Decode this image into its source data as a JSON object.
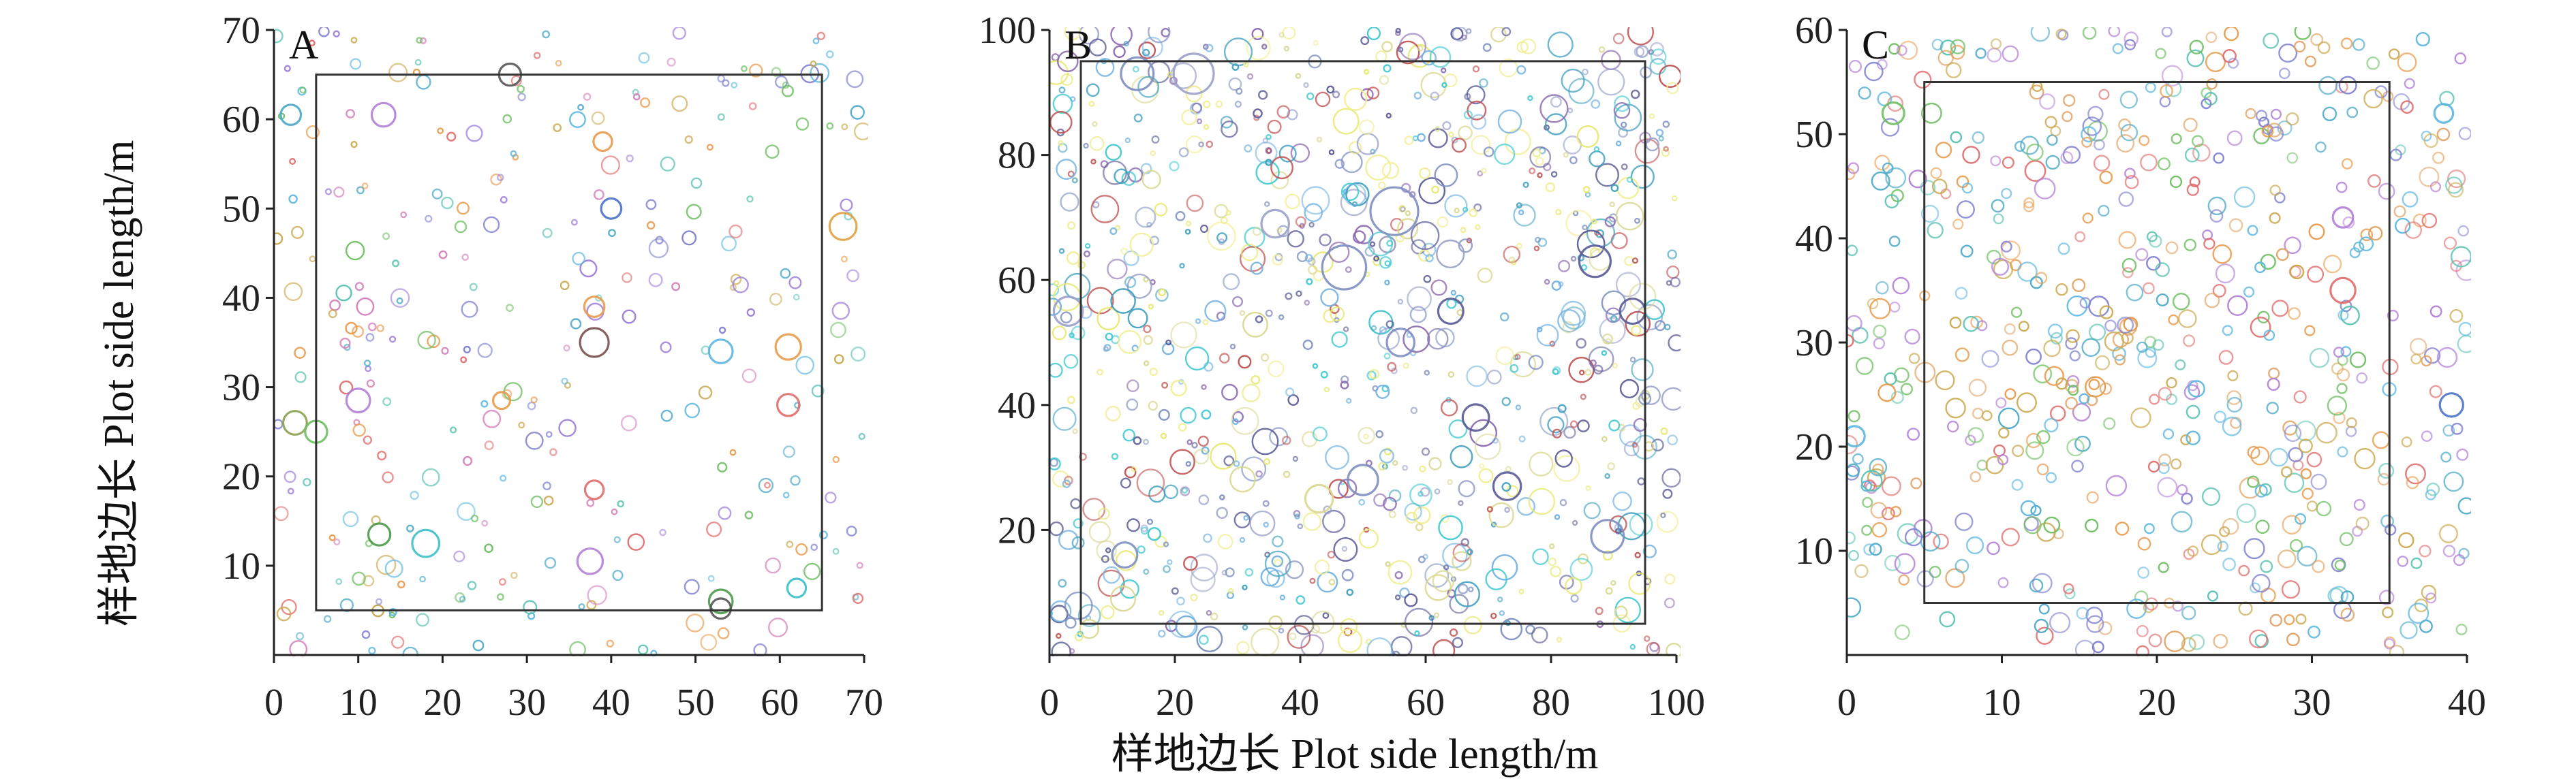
{
  "figure": {
    "ylabel": "样地边长 Plot side length/m",
    "xlabel": "样地边长 Plot side length/m"
  },
  "chart_data": [
    {
      "type": "scatter",
      "label": "A",
      "xlim": [
        0,
        70
      ],
      "ylim": [
        0,
        70
      ],
      "xticks": [
        0,
        10,
        20,
        30,
        40,
        50,
        60,
        70
      ],
      "yticks": [
        10,
        20,
        30,
        40,
        50,
        60,
        70
      ],
      "inner_plot": {
        "x0": 5,
        "x1": 65,
        "y0": 5,
        "y1": 65
      },
      "seed": 11,
      "n_random": 300,
      "r_range": [
        0.3,
        1.1
      ],
      "palette": [
        "#e89a4a",
        "#5bb6e0",
        "#9a7ad8",
        "#6fbf63",
        "#e06a6a",
        "#4aa8c8",
        "#c9a64a",
        "#7f7fd0",
        "#d47fb9",
        "#59c2b0"
      ],
      "highlight_points": [
        {
          "x": 28,
          "y": 65,
          "r": 1.3,
          "c": "#555555"
        },
        {
          "x": 13,
          "y": 60.5,
          "r": 1.4,
          "c": "#b27fd6"
        },
        {
          "x": 2,
          "y": 60.5,
          "r": 1.2,
          "c": "#4aa8c8"
        },
        {
          "x": 39,
          "y": 57.5,
          "r": 1.1,
          "c": "#e89a4a"
        },
        {
          "x": 40,
          "y": 50,
          "r": 1.2,
          "c": "#4a72c8"
        },
        {
          "x": 38,
          "y": 35,
          "r": 1.7,
          "c": "#7a5050"
        },
        {
          "x": 38,
          "y": 39,
          "r": 1.2,
          "c": "#e89a4a"
        },
        {
          "x": 53,
          "y": 34,
          "r": 1.4,
          "c": "#5bb6e0"
        },
        {
          "x": 61,
          "y": 34.5,
          "r": 1.5,
          "c": "#e89a4a"
        },
        {
          "x": 67.5,
          "y": 48,
          "r": 1.6,
          "c": "#e0a040"
        },
        {
          "x": 10,
          "y": 28.5,
          "r": 1.4,
          "c": "#b27fd6"
        },
        {
          "x": 2.5,
          "y": 26,
          "r": 1.4,
          "c": "#8aa050"
        },
        {
          "x": 5,
          "y": 25,
          "r": 1.3,
          "c": "#6fbf63"
        },
        {
          "x": 18,
          "y": 12.5,
          "r": 1.6,
          "c": "#3cc0c8"
        },
        {
          "x": 12.5,
          "y": 13.5,
          "r": 1.3,
          "c": "#4a9a4a"
        },
        {
          "x": 37.5,
          "y": 10.5,
          "r": 1.5,
          "c": "#b27fd6"
        },
        {
          "x": 53,
          "y": 6,
          "r": 1.4,
          "c": "#4a9a4a"
        },
        {
          "x": 53,
          "y": 5.2,
          "r": 1.2,
          "c": "#555555"
        },
        {
          "x": 62,
          "y": 7.5,
          "r": 1.1,
          "c": "#3cc0c8"
        },
        {
          "x": 61,
          "y": 28,
          "r": 1.3,
          "c": "#e06a6a"
        },
        {
          "x": 27,
          "y": 28.5,
          "r": 1.0,
          "c": "#e89a4a"
        },
        {
          "x": 38,
          "y": 18.5,
          "r": 1.1,
          "c": "#e06a6a"
        }
      ]
    },
    {
      "type": "scatter",
      "label": "B",
      "xlim": [
        0,
        100
      ],
      "ylim": [
        0,
        100
      ],
      "xticks": [
        0,
        20,
        40,
        60,
        80,
        100
      ],
      "yticks": [
        20,
        40,
        60,
        80,
        100
      ],
      "inner_plot": {
        "x0": 5,
        "x1": 95,
        "y0": 5,
        "y1": 95
      },
      "seed": 23,
      "n_random": 900,
      "r_range": [
        0.3,
        2.2
      ],
      "palette": [
        "#5a5a96",
        "#7d8ec0",
        "#f0ee90",
        "#e8e870",
        "#3ec8d0",
        "#6fb0e0",
        "#c05050",
        "#8a6ab0",
        "#9aa0c8",
        "#d8d890",
        "#40a0c0"
      ],
      "highlight_points": [
        {
          "x": 55,
          "y": 71,
          "r": 3.8,
          "c": "#7d8ec0"
        },
        {
          "x": 47,
          "y": 62,
          "r": 3.5,
          "c": "#7d8ec0"
        },
        {
          "x": 23,
          "y": 93,
          "r": 3.2,
          "c": "#9aa0c8"
        },
        {
          "x": 14,
          "y": 93,
          "r": 2.6,
          "c": "#7d8ec0"
        },
        {
          "x": 87,
          "y": 63,
          "r": 2.5,
          "c": "#5a5a96"
        },
        {
          "x": 89,
          "y": 19,
          "r": 2.6,
          "c": "#7d8ec0"
        },
        {
          "x": 73,
          "y": 27,
          "r": 2.2,
          "c": "#5a5a96"
        },
        {
          "x": 3,
          "y": 55,
          "r": 2.3,
          "c": "#9aa0c8"
        },
        {
          "x": 50,
          "y": 28,
          "r": 2.4,
          "c": "#7d8ec0"
        },
        {
          "x": 56,
          "y": 50,
          "r": 2.2,
          "c": "#7d8ec0"
        },
        {
          "x": 68,
          "y": 38,
          "r": 2.1,
          "c": "#5a5a96"
        },
        {
          "x": 36,
          "y": 69,
          "r": 2.2,
          "c": "#9aa0c8"
        },
        {
          "x": 12,
          "y": 16,
          "r": 2.0,
          "c": "#7d8ec0"
        },
        {
          "x": 43,
          "y": 25,
          "r": 2.2,
          "c": "#d8d890"
        },
        {
          "x": 93,
          "y": 55,
          "r": 2.0,
          "c": "#5a5a96"
        },
        {
          "x": 64,
          "y": 55,
          "r": 2.0,
          "c": "#5a5a96"
        }
      ]
    },
    {
      "type": "scatter",
      "label": "C",
      "xlim": [
        0,
        40
      ],
      "ylim": [
        0,
        60
      ],
      "xticks": [
        0,
        10,
        20,
        30,
        40
      ],
      "yticks": [
        10,
        20,
        30,
        40,
        50,
        60
      ],
      "inner_plot": {
        "x0": 5,
        "x1": 35,
        "y0": 5,
        "y1": 55
      },
      "seed": 37,
      "n_random": 620,
      "r_range": [
        0.3,
        0.65
      ],
      "palette": [
        "#e89a4a",
        "#5bb6e0",
        "#b27fd6",
        "#6fbf63",
        "#e06a6a",
        "#4aa8c8",
        "#c9a64a",
        "#7f7fd0",
        "#e0a060",
        "#59c2b0"
      ],
      "highlight_points": [
        {
          "x": 32,
          "y": 35,
          "r": 0.8,
          "c": "#e06a6a"
        },
        {
          "x": 39,
          "y": 24,
          "r": 0.75,
          "c": "#4a72c8"
        },
        {
          "x": 32,
          "y": 42,
          "r": 0.65,
          "c": "#b27fd6"
        },
        {
          "x": 0.5,
          "y": 21,
          "r": 0.65,
          "c": "#5bb6e0"
        },
        {
          "x": 3,
          "y": 52,
          "r": 0.7,
          "c": "#6fbf63"
        },
        {
          "x": 38.5,
          "y": 52,
          "r": 0.6,
          "c": "#5bb6e0"
        }
      ]
    }
  ]
}
